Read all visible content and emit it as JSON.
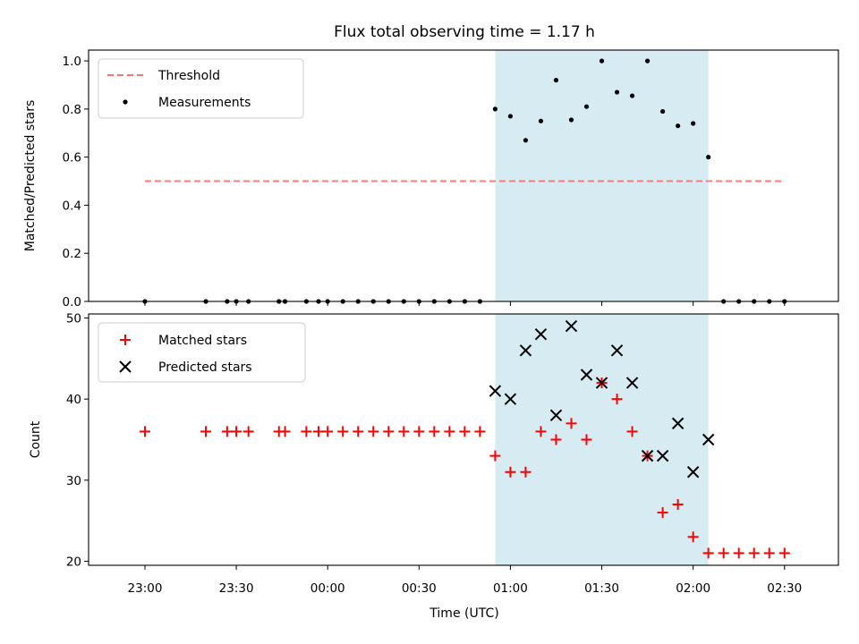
{
  "chart_data": [
    {
      "type": "scatter",
      "title": "Flux total observing time = 1.17 h",
      "ylabel": "Matched/Predicted stars",
      "xlabel": "",
      "ylim": [
        0,
        1.05
      ],
      "yticks": [
        "0.0",
        "0.2",
        "0.4",
        "0.6",
        "0.8",
        "1.0"
      ],
      "legend_position": "top-left",
      "highlight_span": {
        "start": "00:55",
        "end": "02:05",
        "color": "#add8e6"
      },
      "threshold": {
        "name": "Threshold",
        "value": 0.5,
        "x_start": "23:00",
        "x_end": "02:30",
        "color": "#ff6666"
      },
      "series": [
        {
          "name": "Measurements",
          "color": "#000000",
          "x": [
            "23:00",
            "23:20",
            "23:27",
            "23:30",
            "23:34",
            "23:44",
            "23:46",
            "23:53",
            "23:57",
            "00:00",
            "00:05",
            "00:10",
            "00:15",
            "00:20",
            "00:25",
            "00:30",
            "00:35",
            "00:40",
            "00:45",
            "00:50",
            "00:55",
            "01:00",
            "01:05",
            "01:10",
            "01:15",
            "01:20",
            "01:25",
            "01:30",
            "01:35",
            "01:40",
            "01:45",
            "01:50",
            "01:55",
            "02:00",
            "02:05",
            "02:10",
            "02:15",
            "02:20",
            "02:25",
            "02:30"
          ],
          "y": [
            0,
            0,
            0,
            0,
            0,
            0,
            0,
            0,
            0,
            0,
            0,
            0,
            0,
            0,
            0,
            0,
            0,
            0,
            0,
            0,
            0.8,
            0.77,
            0.67,
            0.75,
            0.92,
            0.755,
            0.81,
            1.0,
            0.87,
            0.855,
            1.0,
            0.79,
            0.73,
            0.74,
            0.6,
            0,
            0,
            0,
            0,
            0
          ]
        }
      ]
    },
    {
      "type": "scatter",
      "title": "",
      "ylabel": "Count",
      "xlabel": "Time (UTC)",
      "ylim": [
        19.5,
        50.5
      ],
      "yticks": [
        "20",
        "30",
        "40",
        "50"
      ],
      "xticks": [
        "23:00",
        "23:30",
        "00:00",
        "00:30",
        "01:00",
        "01:30",
        "02:00",
        "02:30"
      ],
      "legend_position": "top-left",
      "highlight_span": {
        "start": "00:55",
        "end": "02:05",
        "color": "#add8e6"
      },
      "series": [
        {
          "name": "Matched stars",
          "color": "#ff0000",
          "marker": "plus",
          "x": [
            "23:00",
            "23:20",
            "23:27",
            "23:30",
            "23:34",
            "23:44",
            "23:46",
            "23:53",
            "23:57",
            "00:00",
            "00:05",
            "00:10",
            "00:15",
            "00:20",
            "00:25",
            "00:30",
            "00:35",
            "00:40",
            "00:45",
            "00:50",
            "00:55",
            "01:00",
            "01:05",
            "01:10",
            "01:15",
            "01:20",
            "01:25",
            "01:30",
            "01:35",
            "01:40",
            "01:45",
            "01:50",
            "01:55",
            "02:00",
            "02:05",
            "02:10",
            "02:15",
            "02:20",
            "02:25",
            "02:30"
          ],
          "y": [
            36,
            36,
            36,
            36,
            36,
            36,
            36,
            36,
            36,
            36,
            36,
            36,
            36,
            36,
            36,
            36,
            36,
            36,
            36,
            36,
            33,
            31,
            31,
            36,
            35,
            37,
            35,
            42,
            40,
            36,
            33,
            26,
            27,
            23,
            21,
            21,
            21,
            21,
            21,
            21
          ]
        },
        {
          "name": "Predicted stars",
          "color": "#000000",
          "marker": "x",
          "x": [
            "00:55",
            "01:00",
            "01:05",
            "01:10",
            "01:15",
            "01:20",
            "01:25",
            "01:30",
            "01:35",
            "01:40",
            "01:45",
            "01:50",
            "01:55",
            "02:00",
            "02:05"
          ],
          "y": [
            41,
            40,
            46,
            48,
            38,
            49,
            43,
            42,
            46,
            42,
            33,
            33,
            37,
            31,
            35
          ]
        }
      ]
    }
  ]
}
